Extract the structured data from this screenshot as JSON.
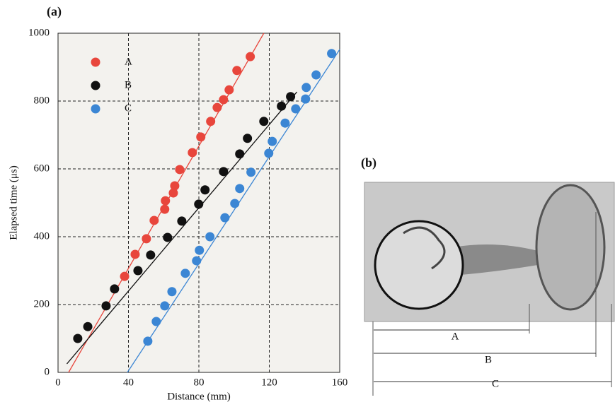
{
  "chart_data": {
    "type": "scatter",
    "panel_label": "(a)",
    "xlabel": "Distance (mm)",
    "ylabel": "Elapsed time (μs)",
    "xlim": [
      0,
      160
    ],
    "ylim": [
      0,
      1000
    ],
    "xticks": [
      0,
      40,
      80,
      120,
      160
    ],
    "yticks": [
      0,
      200,
      400,
      600,
      800,
      1000
    ],
    "grid": true,
    "legend": "upper left",
    "series": [
      {
        "name": "A",
        "color": "#e8463c",
        "x": [
          37.8,
          43.8,
          50.2,
          54.6,
          60.6,
          61.0,
          65.5,
          66.3,
          69.1,
          76.3,
          81.1,
          86.7,
          90.4,
          94.0,
          97.2,
          101.6,
          109.2
        ],
        "values": [
          283,
          348,
          394,
          448,
          481,
          506,
          529,
          550,
          598,
          648,
          694,
          740,
          781,
          804,
          833,
          890,
          931
        ],
        "fit": {
          "x": [
            6,
            116.9
          ],
          "values": [
            0,
            1000
          ]
        }
      },
      {
        "name": "B",
        "color": "#111111",
        "x": [
          11.2,
          16.9,
          27.3,
          32.1,
          45.4,
          52.6,
          62.2,
          70.3,
          79.9,
          83.5,
          94.0,
          103.2,
          107.6,
          116.9,
          126.9,
          132.1
        ],
        "values": [
          100,
          135,
          196,
          246,
          300,
          346,
          398,
          446,
          496,
          538,
          592,
          644,
          690,
          740,
          785,
          813
        ],
        "fit": {
          "x": [
            5,
            135.7
          ],
          "values": [
            25,
            827
          ]
        }
      },
      {
        "name": "C",
        "color": "#3b86d4",
        "x": [
          51.0,
          55.8,
          60.6,
          64.7,
          72.3,
          78.7,
          80.3,
          86.3,
          94.8,
          100.4,
          103.2,
          109.6,
          119.7,
          121.7,
          129.0,
          135.0,
          140.6,
          141.0,
          146.6,
          155.4
        ],
        "values": [
          92,
          150,
          196,
          238,
          292,
          329,
          360,
          400,
          456,
          498,
          542,
          590,
          646,
          681,
          735,
          777,
          806,
          840,
          877,
          940
        ],
        "fit": {
          "x": [
            39.4,
            160
          ],
          "values": [
            0,
            952
          ]
        }
      }
    ]
  },
  "panel_b": {
    "label": "(b)",
    "dimensions": [
      "A",
      "B",
      "C"
    ]
  }
}
